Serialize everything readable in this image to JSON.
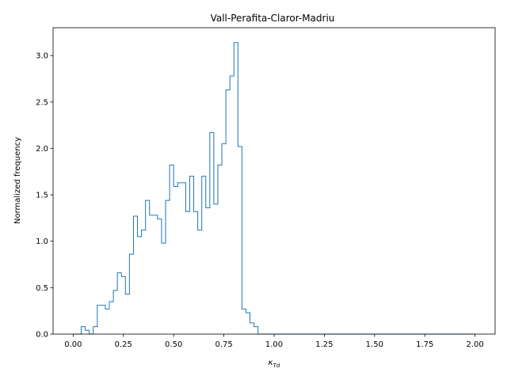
{
  "chart_data": {
    "type": "step-histogram",
    "title": "Vall-Perafita-Claror-Madriu",
    "xlabel": "κ",
    "xlabel_subscript": "Td",
    "ylabel": "Normalized frequency",
    "xlim": [
      -0.1,
      2.1
    ],
    "ylim": [
      0,
      3.3
    ],
    "xticks": [
      0.0,
      0.25,
      0.5,
      0.75,
      1.0,
      1.25,
      1.5,
      1.75,
      2.0
    ],
    "xtick_labels": [
      "0.00",
      "0.25",
      "0.50",
      "0.75",
      "1.00",
      "1.25",
      "1.50",
      "1.75",
      "2.00"
    ],
    "yticks": [
      0.0,
      0.5,
      1.0,
      1.5,
      2.0,
      2.5,
      3.0
    ],
    "ytick_labels": [
      "0.0",
      "0.5",
      "1.0",
      "1.5",
      "2.0",
      "2.5",
      "3.0"
    ],
    "grid": false,
    "line_color": "#1f77b4",
    "bin_width": 0.02,
    "bin_edges_start": 0.0,
    "values": [
      0,
      0,
      0.08,
      0.04,
      0,
      0.08,
      0.31,
      0.31,
      0.27,
      0.35,
      0.47,
      0.66,
      0.62,
      0.43,
      0.86,
      1.27,
      1.05,
      1.12,
      1.44,
      1.28,
      1.28,
      1.24,
      0.98,
      1.44,
      1.82,
      1.59,
      1.63,
      1.63,
      1.32,
      1.7,
      1.32,
      1.12,
      1.7,
      1.36,
      2.17,
      1.4,
      1.82,
      2.05,
      2.63,
      2.78,
      3.14,
      2.02,
      0.27,
      0.23,
      0.12,
      0.08,
      0,
      0,
      0,
      0,
      0,
      0,
      0,
      0,
      0,
      0,
      0,
      0,
      0,
      0,
      0,
      0,
      0,
      0,
      0,
      0,
      0,
      0,
      0,
      0,
      0,
      0,
      0,
      0,
      0,
      0,
      0,
      0,
      0,
      0,
      0,
      0,
      0,
      0,
      0,
      0,
      0,
      0,
      0,
      0,
      0,
      0,
      0,
      0,
      0,
      0,
      0,
      0,
      0,
      0
    ]
  }
}
